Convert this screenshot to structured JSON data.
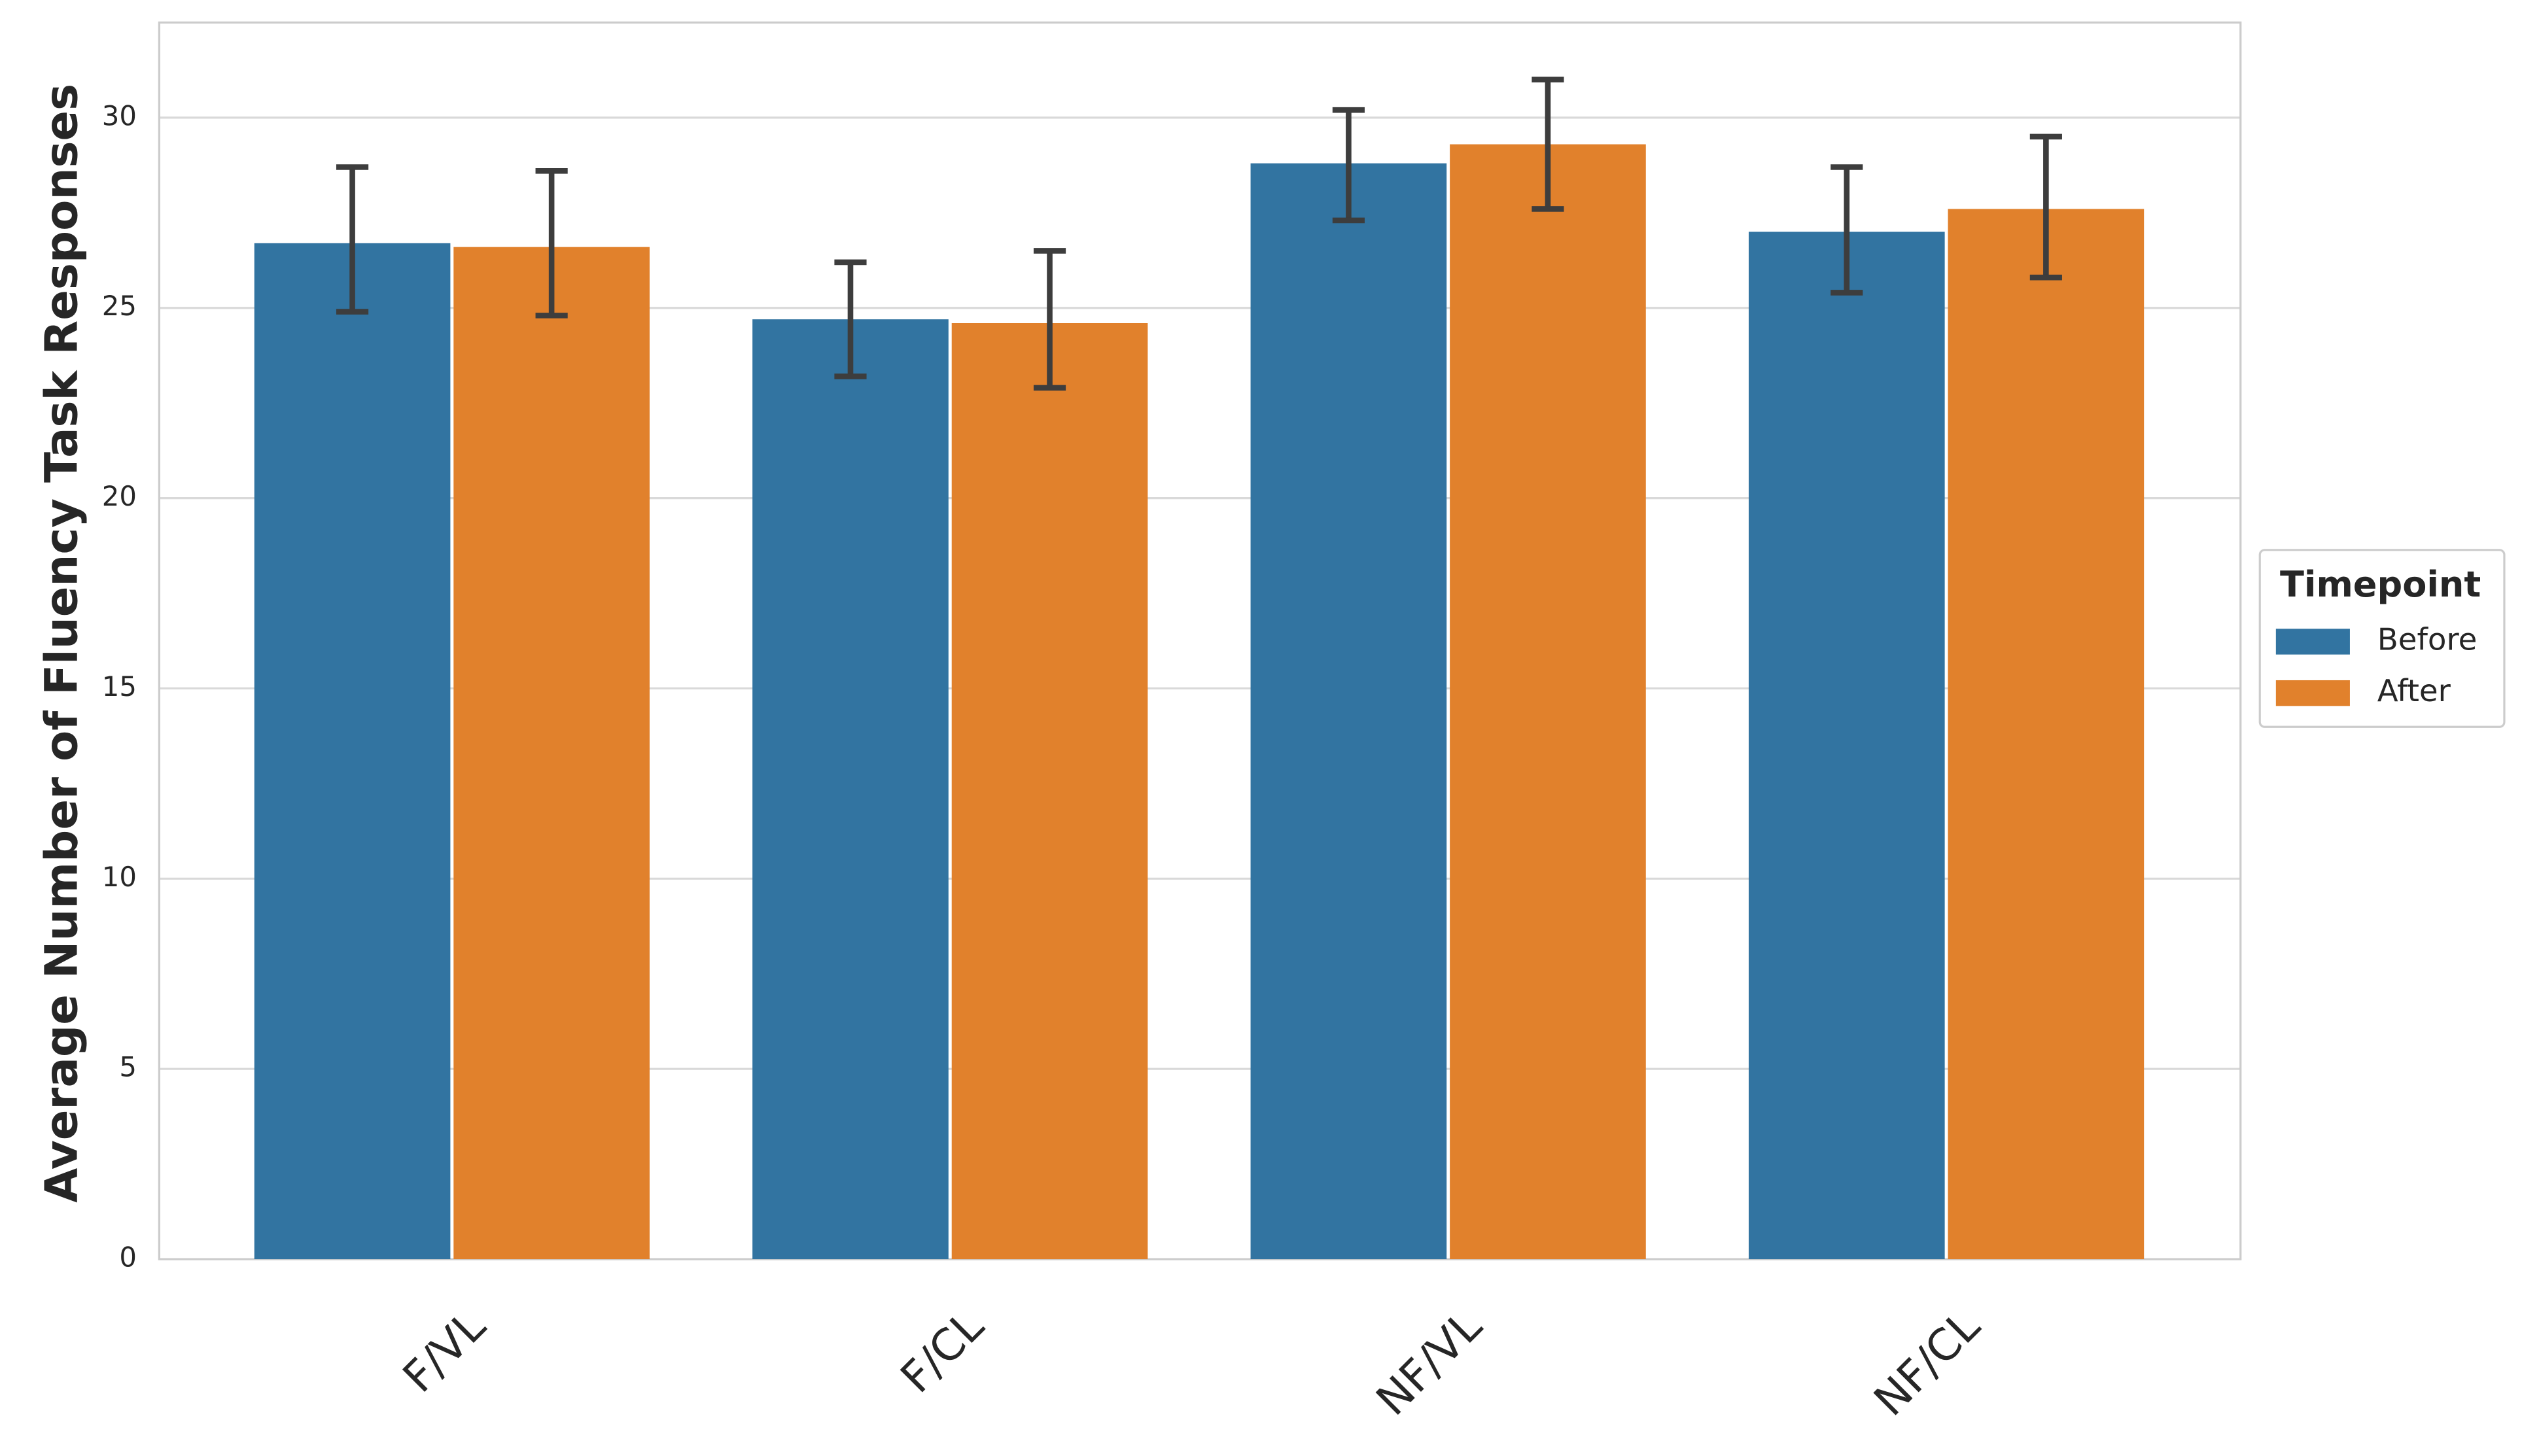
{
  "chart_data": {
    "type": "bar",
    "y_label": "Average Number of Fluency Task Responses",
    "categories": [
      "F/VL",
      "F/CL",
      "NF/VL",
      "NF/CL"
    ],
    "legend_title": "Timepoint",
    "legend_position": "right",
    "series": [
      {
        "name": "Before",
        "color": "#3274a1",
        "values": [
          26.7,
          24.7,
          28.8,
          27.0
        ],
        "ci_low": [
          24.9,
          23.2,
          27.3,
          25.4
        ],
        "ci_high": [
          28.7,
          26.2,
          30.2,
          28.7
        ]
      },
      {
        "name": "After",
        "color": "#e1812c",
        "values": [
          26.6,
          24.6,
          29.3,
          27.6
        ],
        "ci_low": [
          24.8,
          22.9,
          27.6,
          25.8
        ],
        "ci_high": [
          28.6,
          26.5,
          31.0,
          29.5
        ]
      }
    ],
    "ylim": [
      0,
      32.5
    ],
    "yticks": [
      0,
      5,
      10,
      15,
      20,
      25,
      30
    ],
    "grid": true
  }
}
